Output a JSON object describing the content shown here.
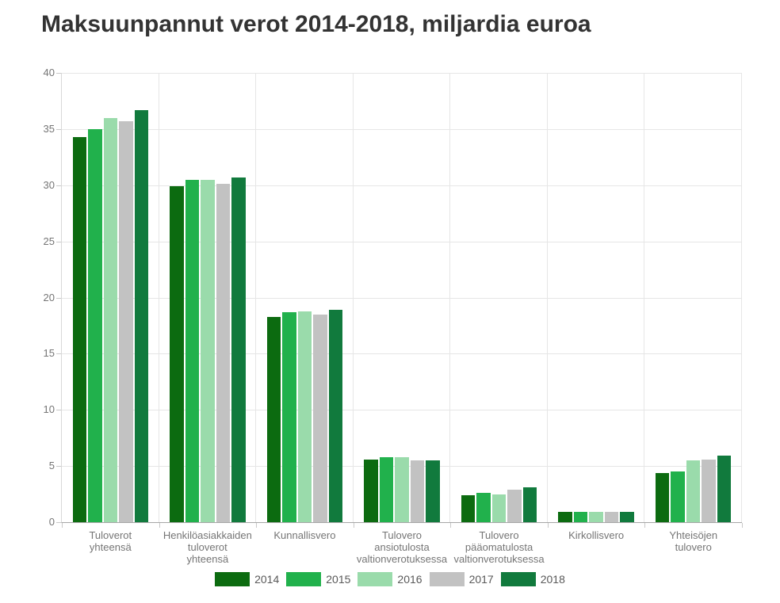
{
  "title": "Maksuunpannut verot 2014-2018, miljardia euroa",
  "chart_data": {
    "type": "bar",
    "title": "Maksuunpannut verot 2014-2018, miljardia euroa",
    "categories": [
      "Tuloverot\nyhteensä",
      "Henkilöasiakkaiden\ntuloverot\nyhteensä",
      "Kunnallisvero",
      "Tulovero\nansiotulosta\nvaltionverotuksessa",
      "Tulovero\npääomatulosta\nvaltionverotuksessa",
      "Kirkollisvero",
      "Yhteisöjen\ntulovero"
    ],
    "series": [
      {
        "name": "2014",
        "color": "#0c6b10",
        "values": [
          34.3,
          29.9,
          18.3,
          5.6,
          2.4,
          0.9,
          4.4
        ]
      },
      {
        "name": "2015",
        "color": "#21b14c",
        "values": [
          35.0,
          30.5,
          18.7,
          5.8,
          2.6,
          0.9,
          4.5
        ]
      },
      {
        "name": "2016",
        "color": "#9adbab",
        "values": [
          36.0,
          30.5,
          18.8,
          5.8,
          2.5,
          0.9,
          5.5
        ]
      },
      {
        "name": "2017",
        "color": "#c2c2c2",
        "values": [
          35.7,
          30.1,
          18.5,
          5.5,
          2.9,
          0.9,
          5.6
        ]
      },
      {
        "name": "2018",
        "color": "#117a3d",
        "values": [
          36.7,
          30.7,
          18.9,
          5.5,
          3.1,
          0.9,
          5.9
        ]
      }
    ],
    "xlabel": "",
    "ylabel": "",
    "ylim": [
      0,
      40
    ],
    "ytick_step": 5,
    "ytick_labels": [
      "0",
      "5",
      "10",
      "15",
      "20",
      "25",
      "30",
      "35",
      "40"
    ],
    "grid": true,
    "legend_position": "bottom"
  },
  "styles": {
    "background": "#ffffff",
    "title_color": "#333333",
    "axis_line_color": "#a6a6a6",
    "yaxis_line_color": "#d8d8d8",
    "gridline_color": "#e6e6e6",
    "tick_color": "#c9c9c9",
    "tick_label_color": "#757575",
    "category_label_color": "#757575",
    "legend_label_color": "#595959"
  }
}
